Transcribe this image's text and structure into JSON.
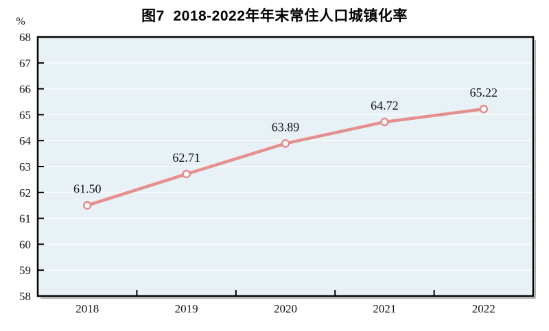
{
  "figure": {
    "title": "图7  2018-2022年年末常住人口城镇化率",
    "unit_label": "%"
  },
  "chart_data": {
    "type": "line",
    "title": "图7  2018-2022年年末常住人口城镇化率",
    "categories": [
      "2018",
      "2019",
      "2020",
      "2021",
      "2022"
    ],
    "series": [
      {
        "name": "年末常住人口城镇化率",
        "values": [
          61.5,
          62.71,
          63.89,
          64.72,
          65.22
        ]
      }
    ],
    "data_labels": [
      "61.50",
      "62.71",
      "63.89",
      "64.72",
      "65.22"
    ],
    "xlabel": "",
    "ylabel": "%",
    "ylim": [
      58,
      68
    ],
    "yticks": [
      58,
      59,
      60,
      61,
      62,
      63,
      64,
      65,
      66,
      67,
      68
    ],
    "grid": true,
    "legend": "none",
    "marker": "open-circle",
    "colors": {
      "line": "#e58f8f",
      "marker_fill": "#ffffff",
      "plot_background": "#e8f2f6",
      "gridline": "#ffffff",
      "axis": "#000000",
      "shadow": "#9a9a9a",
      "text": "#111111",
      "page_background": "#ffffff"
    }
  }
}
